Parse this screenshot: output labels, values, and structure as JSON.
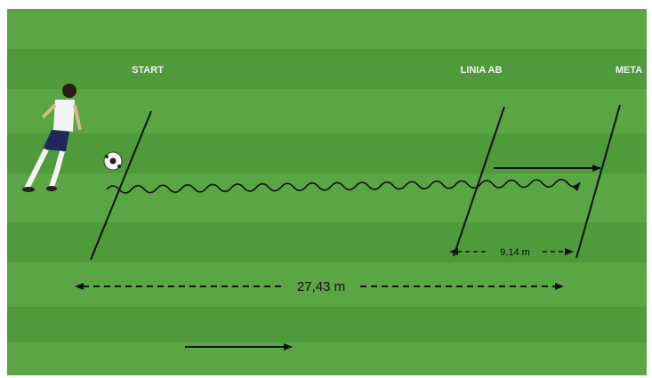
{
  "labels": {
    "start": "START",
    "line_ab": "LINIA AB",
    "finish": "META"
  },
  "dimensions": {
    "short": "9,14 m",
    "long": "27,43 m"
  }
}
